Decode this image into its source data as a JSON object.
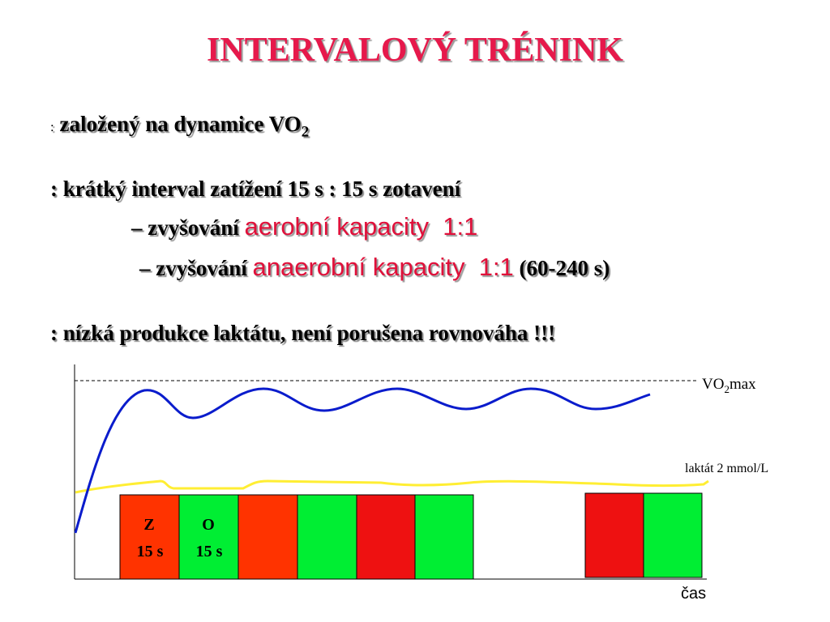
{
  "title": "INTERVALOVÝ TRÉNINK",
  "bullets": [
    {
      "prefix": ":",
      "text": "založený na dynamice VO",
      "subscript": "2"
    },
    {
      "text": ": krátký interval zatížení 15 s : 15 s zotavení"
    },
    {
      "prefix": "– zvyšování",
      "highlight": "aerobní kapacity  1:1"
    },
    {
      "prefix": "– zvyšování",
      "highlight": "anaerobní kapacity  1:1",
      "suffix": "(60-240 s)"
    },
    {
      "text": ": nízká produkce laktátu, není porušena rovnováha !!!"
    }
  ],
  "diagram": {
    "vo2max_label": {
      "text": "VO",
      "subscript": "2",
      "suffix": "max"
    },
    "lactate_label": "laktát 2 mmol/L",
    "x_axis_label": "čas",
    "blocks": [
      {
        "label": "Z",
        "duration": "15 s"
      },
      {
        "label": "O",
        "duration": "15 s"
      }
    ]
  }
}
